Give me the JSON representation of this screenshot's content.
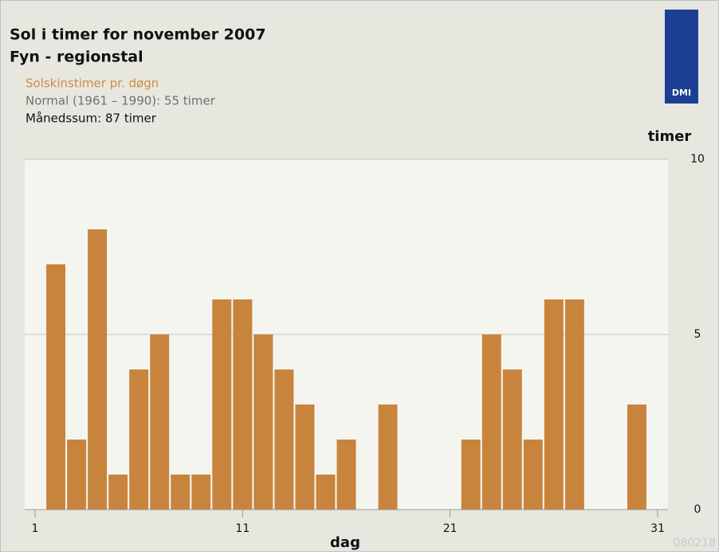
{
  "chart_data": {
    "type": "bar",
    "title": "Sol i timer for november 2007",
    "subtitle": "Fyn - regionstal",
    "legend": [
      "Solskinstimer pr. døgn",
      "Normal (1961 – 1990): 55 timer",
      "Månedssum: 87 timer"
    ],
    "x_label": "dag",
    "y_label": "timer",
    "code": "080218",
    "logo": "DMI",
    "x": [
      1,
      2,
      3,
      4,
      5,
      6,
      7,
      8,
      9,
      10,
      11,
      12,
      13,
      14,
      15,
      16,
      17,
      18,
      19,
      20,
      21,
      22,
      23,
      24,
      25,
      26,
      27,
      28,
      29,
      30,
      31
    ],
    "values": [
      0,
      7,
      2,
      8,
      1,
      4,
      5,
      1,
      1,
      6,
      6,
      5,
      4,
      3,
      1,
      2,
      0,
      3,
      0,
      0,
      0,
      2,
      5,
      4,
      2,
      6,
      6,
      0,
      0,
      3,
      0
    ],
    "color": "#c8843c",
    "xlim": [
      0.5,
      31.5
    ],
    "xticks": [
      1,
      11,
      21,
      31
    ],
    "ylim": [
      0,
      10
    ],
    "yticks": [
      0,
      5,
      10
    ],
    "grid": true
  }
}
